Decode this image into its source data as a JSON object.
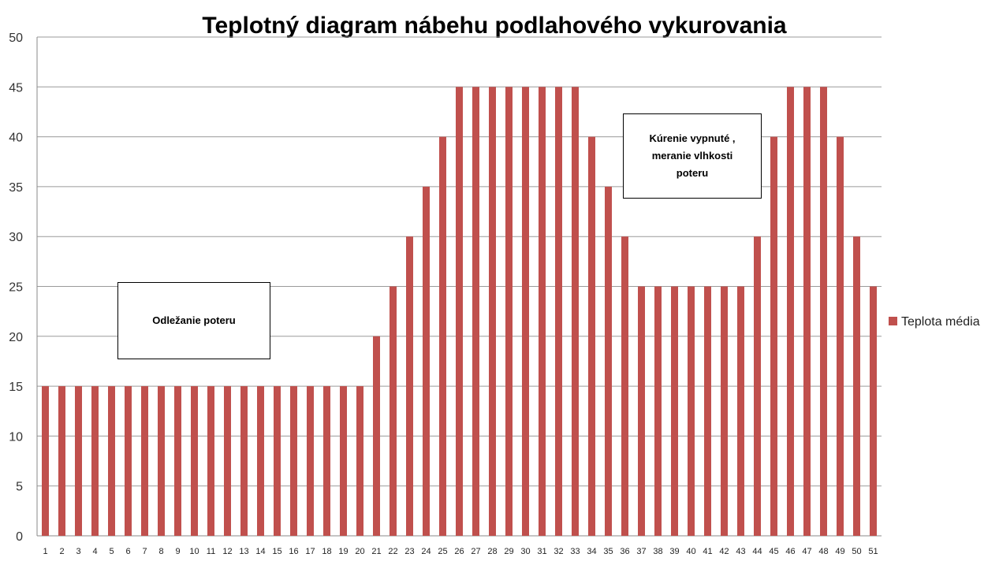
{
  "chart_data": {
    "type": "bar",
    "title": "Teplotný diagram nábehu podlahového vykurovania",
    "xlabel": "",
    "ylabel": "",
    "ylim": [
      0,
      50
    ],
    "yticks": [
      0,
      5,
      10,
      15,
      20,
      25,
      30,
      35,
      40,
      45,
      50
    ],
    "grid": true,
    "legend_position": "right",
    "categories": [
      "1",
      "2",
      "3",
      "4",
      "5",
      "6",
      "7",
      "8",
      "9",
      "10",
      "11",
      "12",
      "13",
      "14",
      "15",
      "16",
      "17",
      "18",
      "19",
      "20",
      "21",
      "22",
      "23",
      "24",
      "25",
      "26",
      "27",
      "28",
      "29",
      "30",
      "31",
      "32",
      "33",
      "34",
      "35",
      "36",
      "37",
      "38",
      "39",
      "40",
      "41",
      "42",
      "43",
      "44",
      "45",
      "46",
      "47",
      "48",
      "49",
      "50",
      "51"
    ],
    "series": [
      {
        "name": "Teplota média",
        "color": "#c0504d",
        "values": [
          15,
          15,
          15,
          15,
          15,
          15,
          15,
          15,
          15,
          15,
          15,
          15,
          15,
          15,
          15,
          15,
          15,
          15,
          15,
          15,
          20,
          25,
          30,
          35,
          40,
          45,
          45,
          45,
          45,
          45,
          45,
          45,
          45,
          40,
          35,
          30,
          25,
          25,
          25,
          25,
          25,
          25,
          25,
          30,
          40,
          45,
          45,
          45,
          40,
          30,
          25
        ]
      }
    ],
    "annotations": [
      {
        "text": "Odležanie poteru"
      },
      {
        "text": "Kúrenie vypnuté , meranie vlhkosti poteru"
      }
    ]
  }
}
